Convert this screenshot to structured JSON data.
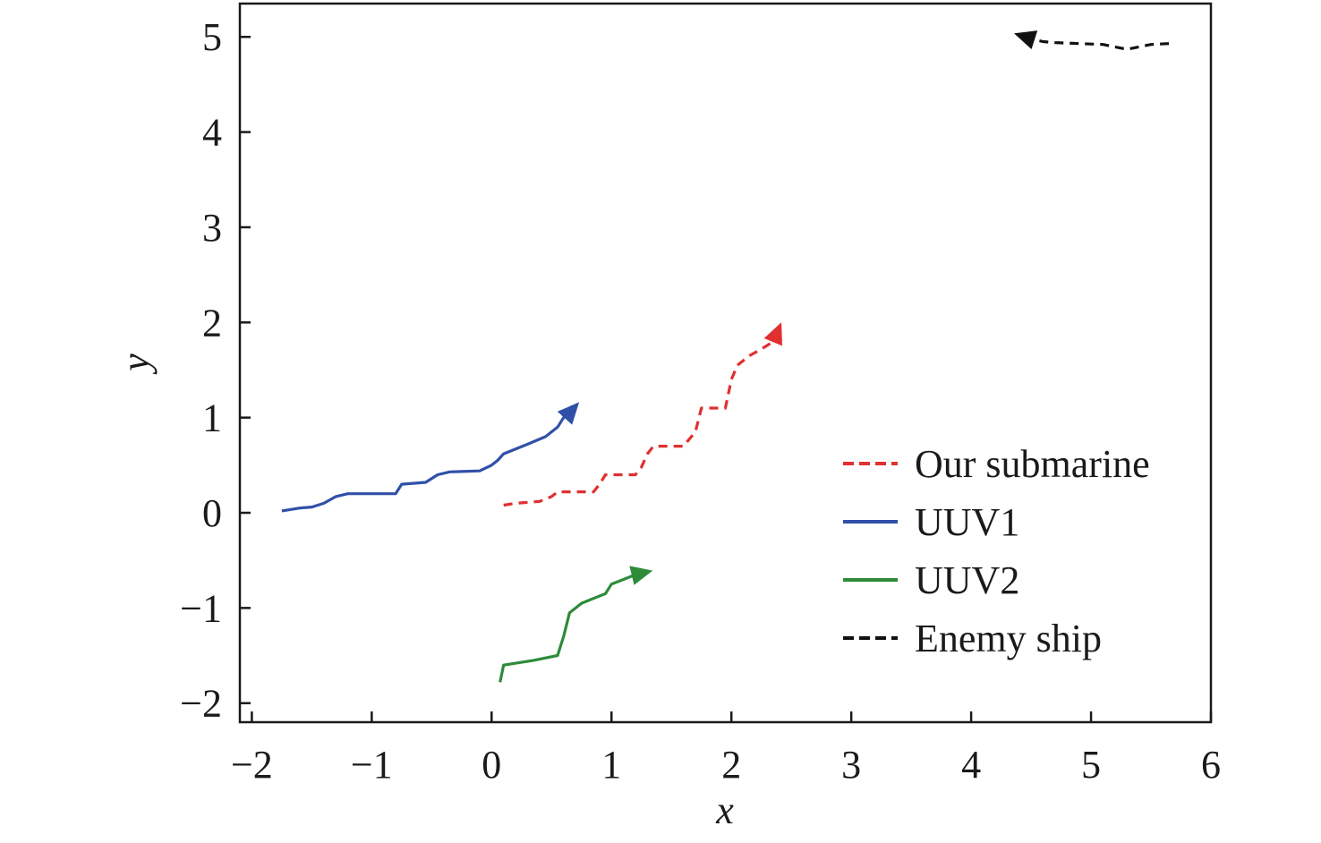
{
  "chart_data": {
    "type": "line",
    "title": "",
    "xlabel": "x",
    "ylabel": "y",
    "xlim": [
      -2.1,
      6.0
    ],
    "ylim": [
      -2.2,
      5.35
    ],
    "xticks": [
      -2,
      -1,
      0,
      1,
      2,
      3,
      4,
      5,
      6
    ],
    "yticks": [
      -2,
      -1,
      0,
      1,
      2,
      3,
      4,
      5
    ],
    "xtick_labels": [
      "−2",
      "−1",
      "0",
      "1",
      "2",
      "3",
      "4",
      "5",
      "6"
    ],
    "ytick_labels": [
      "−2",
      "−1",
      "0",
      "1",
      "2",
      "3",
      "4",
      "5"
    ],
    "grid": false,
    "legend_position": "lower-right",
    "series": [
      {
        "name": "Our submarine",
        "color": "#e03030",
        "style": "dashed",
        "x": [
          0.1,
          0.2,
          0.4,
          0.5,
          0.55,
          0.65,
          0.85,
          0.9,
          0.95,
          1.2,
          1.25,
          1.3,
          1.35,
          1.6,
          1.7,
          1.75,
          1.95,
          2.0,
          2.05,
          2.15,
          2.25,
          2.35,
          2.4
        ],
        "y": [
          0.08,
          0.1,
          0.12,
          0.17,
          0.22,
          0.22,
          0.22,
          0.3,
          0.4,
          0.4,
          0.48,
          0.62,
          0.7,
          0.7,
          0.85,
          1.1,
          1.1,
          1.4,
          1.55,
          1.65,
          1.72,
          1.8,
          1.95
        ]
      },
      {
        "name": "UUV1",
        "color": "#3050a8",
        "style": "solid",
        "x": [
          -1.75,
          -1.6,
          -1.5,
          -1.4,
          -1.3,
          -1.2,
          -0.8,
          -0.75,
          -0.55,
          -0.45,
          -0.35,
          -0.1,
          0.0,
          0.05,
          0.1,
          0.3,
          0.45,
          0.55,
          0.6,
          0.65,
          0.7
        ],
        "y": [
          0.02,
          0.05,
          0.06,
          0.1,
          0.17,
          0.2,
          0.2,
          0.3,
          0.32,
          0.4,
          0.43,
          0.44,
          0.5,
          0.55,
          0.62,
          0.72,
          0.8,
          0.9,
          1.0,
          1.05,
          1.12
        ]
      },
      {
        "name": "UUV2",
        "color": "#2e8b3a",
        "style": "solid",
        "x": [
          0.07,
          0.1,
          0.35,
          0.55,
          0.6,
          0.65,
          0.75,
          0.85,
          0.95,
          1.0,
          1.1,
          1.2,
          1.3
        ],
        "y": [
          -1.78,
          -1.6,
          -1.55,
          -1.5,
          -1.3,
          -1.05,
          -0.95,
          -0.9,
          -0.85,
          -0.75,
          -0.7,
          -0.65,
          -0.62
        ]
      },
      {
        "name": "Enemy ship",
        "color": "#111111",
        "style": "dashed",
        "x": [
          5.65,
          5.5,
          5.3,
          5.1,
          4.9,
          4.7,
          4.6,
          4.5,
          4.4
        ],
        "y": [
          4.93,
          4.92,
          4.87,
          4.92,
          4.93,
          4.94,
          4.95,
          4.98,
          5.02
        ]
      }
    ]
  }
}
